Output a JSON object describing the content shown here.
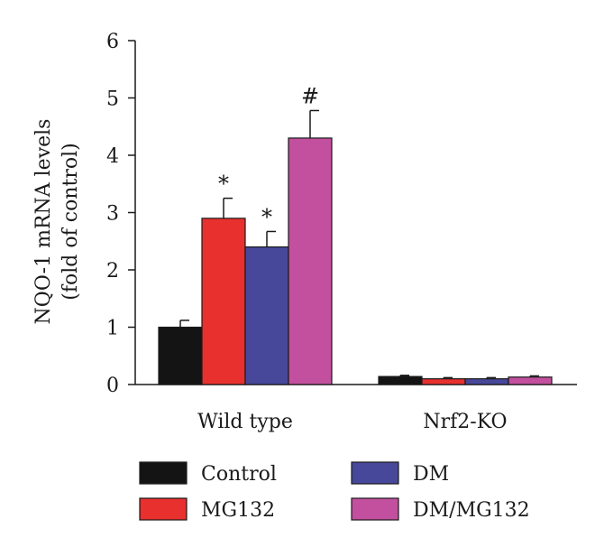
{
  "chart_data": {
    "type": "bar",
    "title": "",
    "xlabel": "",
    "ylabel_lines": [
      "NQO-1 mRNA levels",
      "(fold of control)"
    ],
    "ylim": [
      0,
      6
    ],
    "yticks": [
      "0",
      "1",
      "2",
      "3",
      "4",
      "5",
      "6"
    ],
    "categories": [
      "Wild type",
      "Nrf2-KO"
    ],
    "series": [
      {
        "name": "Control",
        "color": "#141414",
        "values": [
          1.0,
          0.14
        ],
        "errors": [
          0.12,
          0.02
        ]
      },
      {
        "name": "MG132",
        "color": "#e8302e",
        "values": [
          2.9,
          0.1
        ],
        "errors": [
          0.35,
          0.02
        ]
      },
      {
        "name": "DM",
        "color": "#47489a",
        "values": [
          2.4,
          0.1
        ],
        "errors": [
          0.27,
          0.02
        ]
      },
      {
        "name": "DM/MG132",
        "color": "#c2509e",
        "values": [
          4.3,
          0.13
        ],
        "errors": [
          0.48,
          0.02
        ]
      }
    ],
    "annotations": [
      {
        "series": 1,
        "category": 0,
        "text": "*"
      },
      {
        "series": 2,
        "category": 0,
        "text": "*"
      },
      {
        "series": 3,
        "category": 0,
        "text": "#"
      }
    ],
    "legend_position": "bottom",
    "grid": false
  }
}
